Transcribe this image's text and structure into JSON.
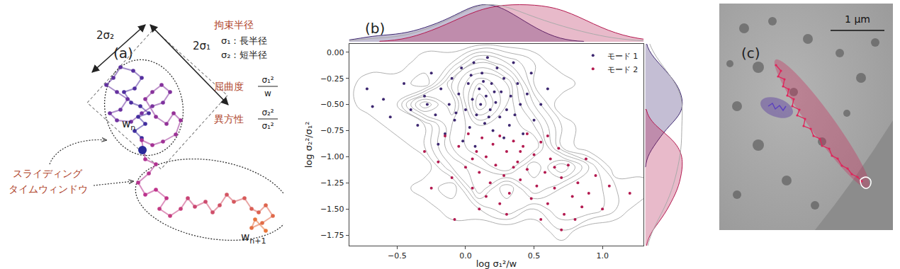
{
  "panels": {
    "a": {
      "label": "(a)",
      "dimension_labels": [
        "2σ₂",
        "2σ₁"
      ],
      "legend_items": [
        {
          "title": "拘束半径",
          "lines": [
            "σ₁：長半径",
            "σ₂：短半径"
          ]
        },
        {
          "title": "屈曲度",
          "formula": {
            "numerator": "σ₁²",
            "denominator": "w"
          }
        },
        {
          "title": "異方性",
          "formula": {
            "numerator": "σ₂²",
            "denominator": "σ₁²"
          }
        }
      ],
      "callout": [
        "スライディング",
        "タイムウィンドウ"
      ],
      "windows": [
        {
          "base": "w",
          "sub": "n"
        },
        {
          "base": "w",
          "sub": "n+1"
        }
      ]
    },
    "c": {
      "label": "(c)",
      "scale_bar": "1 μm"
    }
  },
  "chart_data": {
    "type": "scatter",
    "annotations": [
      "(b)"
    ],
    "xlabel": "log σ₁²/w",
    "ylabel": "log σ₂²/σ₁²",
    "xlim": [
      -0.85,
      1.3
    ],
    "ylim": [
      -1.85,
      0.08
    ],
    "xticks": [
      {
        "value": -0.5,
        "label": "−0.5"
      },
      {
        "value": 0,
        "label": "0.0"
      },
      {
        "value": 0.5,
        "label": "0.5"
      },
      {
        "value": 1,
        "label": "1.0"
      }
    ],
    "yticks": [
      {
        "value": 0,
        "label": "0.00"
      },
      {
        "value": -0.25,
        "label": "−0.25"
      },
      {
        "value": -0.5,
        "label": "−0.50"
      },
      {
        "value": -0.75,
        "label": "−0.75"
      },
      {
        "value": -1,
        "label": "−1.00"
      },
      {
        "value": -1.25,
        "label": "−1.25"
      },
      {
        "value": -1.5,
        "label": "−1.50"
      },
      {
        "value": -1.75,
        "label": "−1.75"
      }
    ],
    "grid": false,
    "legend": "upper right",
    "series": [
      {
        "name": "モード 1",
        "color": "#3d2770",
        "x": [
          -0.72,
          -0.68,
          -0.6,
          -0.55,
          -0.45,
          -0.4,
          -0.35,
          -0.3,
          -0.25,
          -0.22,
          -0.18,
          -0.15,
          -0.12,
          -0.1,
          -0.08,
          -0.05,
          -0.03,
          0.0,
          0.02,
          0.03,
          0.05,
          0.06,
          0.08,
          0.1,
          0.11,
          0.12,
          0.14,
          0.15,
          0.16,
          0.18,
          0.19,
          0.2,
          0.22,
          0.23,
          0.25,
          0.26,
          0.28,
          0.3,
          0.32,
          0.33,
          0.35,
          0.36,
          0.38,
          0.4,
          0.42,
          0.45,
          0.48,
          0.5,
          0.55,
          0.6,
          -0.02,
          0.07,
          -0.2,
          0.28,
          0.13,
          -0.07,
          0.21,
          0.04,
          0.17,
          -0.28
        ],
        "values": [
          -0.35,
          -0.52,
          -0.45,
          -0.62,
          -0.3,
          -0.55,
          -0.7,
          -0.42,
          -0.2,
          -0.6,
          -0.35,
          -0.78,
          -0.5,
          -0.25,
          -0.65,
          -0.4,
          -0.15,
          -0.55,
          -0.3,
          -0.72,
          -0.45,
          -0.1,
          -0.6,
          -0.35,
          -0.5,
          -0.2,
          -0.68,
          -0.42,
          -0.05,
          -0.55,
          -0.3,
          -0.75,
          -0.48,
          -0.15,
          -0.62,
          -0.38,
          -0.25,
          -0.55,
          -0.7,
          -0.42,
          -0.1,
          -0.6,
          -0.3,
          -0.5,
          -0.78,
          -0.4,
          -0.2,
          -0.65,
          -0.5,
          -0.35,
          -0.85,
          -0.9,
          -0.88,
          -0.82,
          -0.28,
          -0.58,
          -0.38,
          -0.22,
          -0.62,
          -0.5
        ]
      },
      {
        "name": "モード 2",
        "color": "#b3194f",
        "x": [
          -0.3,
          -0.2,
          -0.15,
          -0.1,
          -0.05,
          0.0,
          0.02,
          0.05,
          0.08,
          0.1,
          0.12,
          0.15,
          0.18,
          0.2,
          0.22,
          0.25,
          0.28,
          0.3,
          0.32,
          0.35,
          0.38,
          0.4,
          0.42,
          0.45,
          0.48,
          0.5,
          0.52,
          0.55,
          0.58,
          0.6,
          0.62,
          0.65,
          0.68,
          0.7,
          0.72,
          0.75,
          0.78,
          0.8,
          0.82,
          0.85,
          0.88,
          0.9,
          0.95,
          1.0,
          1.05,
          1.2,
          0.1,
          -0.08,
          0.3,
          0.45,
          -0.25,
          0.6,
          0.15,
          0.35,
          0.55,
          0.25,
          0.7,
          0.05,
          0.4,
          0.65
        ],
        "values": [
          -0.95,
          -1.05,
          -0.8,
          -1.2,
          -0.9,
          -1.1,
          -0.78,
          -1.3,
          -0.95,
          -1.15,
          -0.82,
          -1.0,
          -1.25,
          -0.88,
          -1.08,
          -0.8,
          -1.18,
          -0.95,
          -1.35,
          -0.85,
          -1.05,
          -1.22,
          -0.9,
          -1.12,
          -1.4,
          -0.98,
          -1.28,
          -0.86,
          -1.15,
          -1.45,
          -1.02,
          -1.3,
          -0.92,
          -1.2,
          -1.55,
          -1.08,
          -1.38,
          -1.6,
          -1.25,
          -1.48,
          -1.02,
          -1.35,
          -1.18,
          -1.5,
          -1.28,
          -1.35,
          -1.5,
          -1.6,
          -1.55,
          -0.78,
          -1.3,
          -0.8,
          -1.38,
          -1.1,
          -1.6,
          -1.45,
          -1.7,
          -1.02,
          -0.95,
          -1.1
        ]
      }
    ]
  }
}
